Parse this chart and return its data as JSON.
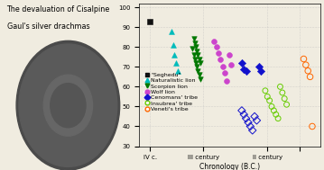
{
  "background_color": "#f0ece0",
  "title_line1": "The devaluation of Cisalpine",
  "title_line2": "Gaul's silver drachmas",
  "xlabel": "Chronology (B.C.)",
  "ylim": [
    30,
    100
  ],
  "yticks": [
    30,
    40,
    50,
    60,
    70,
    80,
    90,
    100
  ],
  "grid_color": "#bbbbbb",
  "title_fontsize": 5.8,
  "label_fontsize": 5.5,
  "tick_fontsize": 5.0,
  "legend_fontsize": 4.5,
  "seghedu": {
    "x": [
      1
    ],
    "y": [
      93
    ],
    "marker": "s",
    "color": "#111111",
    "size": 22,
    "filled": true,
    "label": "\"Seghedu\""
  },
  "naturalistic_lion": {
    "x": [
      2.0,
      2.1,
      2.15,
      2.2,
      2.3
    ],
    "y": [
      88,
      81,
      76,
      72,
      68
    ],
    "marker": "^",
    "color": "#00bbbb",
    "size": 18,
    "filled": true,
    "label": "Naturalistic lion"
  },
  "scorpion_lion": {
    "x": [
      3.0,
      3.05,
      3.1,
      3.15,
      3.2,
      3.25,
      3.3,
      3.35,
      3.05,
      3.1,
      3.15,
      3.2,
      3.25,
      3.3,
      3.35
    ],
    "y": [
      79,
      76,
      74,
      72,
      70,
      68,
      66,
      64,
      84,
      82,
      80,
      78,
      76,
      74,
      72
    ],
    "marker": "v",
    "color": "#007700",
    "size": 16,
    "filled": true,
    "label": "Scorpion lion"
  },
  "wolf_lion": {
    "x": [
      4.0,
      4.1,
      4.2,
      4.3,
      4.4,
      4.5,
      4.6,
      4.7,
      4.8
    ],
    "y": [
      83,
      80,
      77,
      74,
      70,
      67,
      63,
      76,
      71
    ],
    "marker": "o",
    "color": "#cc44cc",
    "size": 18,
    "filled": true,
    "label": "Wolf lion"
  },
  "cenomans_filled": {
    "x": [
      5.3,
      5.4,
      5.5,
      6.1,
      6.2
    ],
    "y": [
      72,
      69,
      68,
      70,
      68
    ],
    "marker": "D",
    "color": "#1111cc",
    "size": 18,
    "filled": true,
    "label": "Cenomans' tribe"
  },
  "cenomans_open": {
    "x": [
      5.3,
      5.4,
      5.5,
      5.6,
      5.7,
      5.8,
      5.9,
      6.0
    ],
    "y": [
      48,
      46,
      44,
      42,
      40,
      38,
      45,
      43
    ],
    "marker": "D",
    "color": "#1111cc",
    "size": 18,
    "filled": false,
    "label": ""
  },
  "insubrea": {
    "x": [
      6.4,
      6.5,
      6.6,
      6.7,
      6.8,
      6.9,
      7.0,
      7.1,
      7.2,
      7.3,
      7.4
    ],
    "y": [
      58,
      55,
      53,
      50,
      48,
      46,
      44,
      60,
      57,
      54,
      51
    ],
    "marker": "o",
    "color": "#66cc00",
    "size": 18,
    "filled": false,
    "label": "Insubrea' tribe"
  },
  "veneti": {
    "x": [
      8.2,
      8.3,
      8.4,
      8.5,
      8.6
    ],
    "y": [
      74,
      71,
      68,
      65,
      40
    ],
    "marker": "o",
    "color": "#ff6600",
    "size": 22,
    "filled": false,
    "label": "Veneti's tribe"
  },
  "xtick_pos": [
    1.0,
    3.5,
    6.5,
    8.0
  ],
  "xtick_labels": [
    "IV c.",
    "III century",
    "II century",
    ""
  ],
  "xlim": [
    0.5,
    9.0
  ]
}
